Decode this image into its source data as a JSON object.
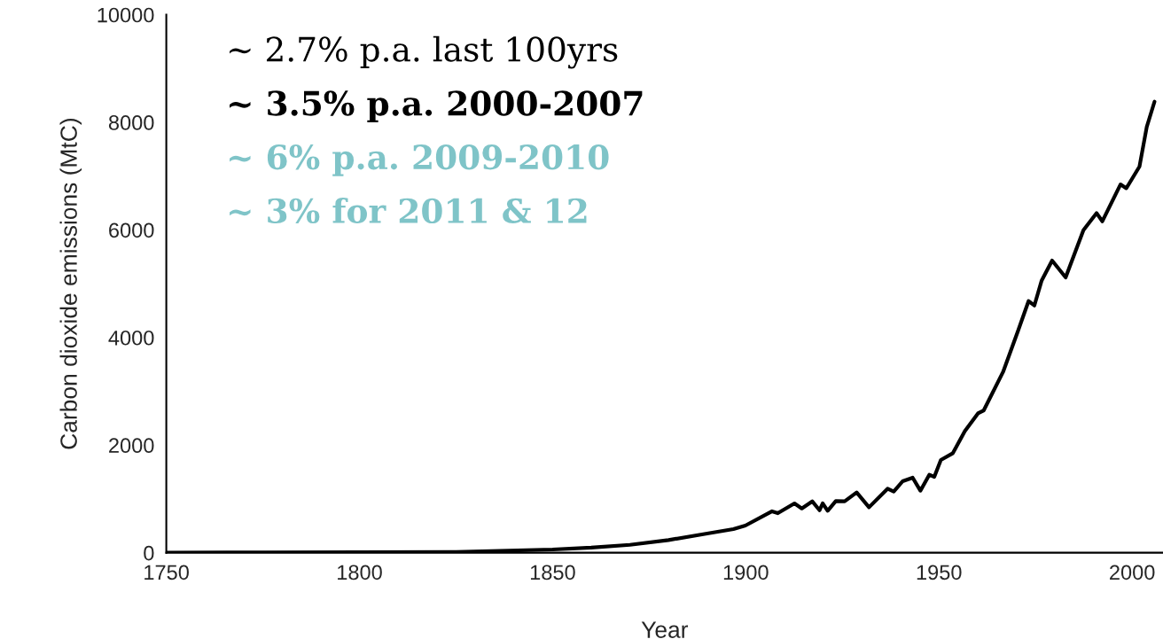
{
  "chart_data": {
    "type": "line",
    "xlabel": "Year",
    "ylabel": "Carbon dioxide emissions (MtC)",
    "x": [
      1750,
      1775,
      1800,
      1825,
      1850,
      1860,
      1870,
      1880,
      1890,
      1896.8,
      1899.9,
      1906.8,
      1908.3,
      1912.6,
      1914.5,
      1917.2,
      1919.1,
      1919.9,
      1921.2,
      1923.3,
      1925.6,
      1928.7,
      1931.9,
      1936.7,
      1938.3,
      1940.6,
      1943.2,
      1945.2,
      1947.5,
      1948.8,
      1950.5,
      1953.6,
      1956.7,
      1960.1,
      1961.6,
      1966.6,
      1970.5,
      1973.2,
      1974.7,
      1976.6,
      1979.3,
      1982.8,
      1987.4,
      1990.8,
      1992.3,
      1997.0,
      1998.5,
      2001.9,
      2003.8,
      2005.8
    ],
    "series": [
      {
        "color": "#000000",
        "values": [
          3,
          5,
          8,
          15,
          60,
          95,
          147,
          236,
          357,
          440,
          505,
          770,
          735,
          917,
          823,
          955,
          790,
          917,
          779,
          960,
          955,
          1120,
          845,
          1190,
          1136,
          1329,
          1395,
          1153,
          1450,
          1411,
          1724,
          1850,
          2261,
          2590,
          2646,
          3360,
          4129,
          4677,
          4595,
          5061,
          5430,
          5117,
          5995,
          6313,
          6160,
          6846,
          6774,
          7176,
          7917,
          8383
        ]
      }
    ],
    "xlim": [
      1750,
      2008
    ],
    "ylim": [
      0,
      10000
    ],
    "xticks": [
      1750,
      1800,
      1850,
      1900,
      1950,
      2000
    ],
    "yticks": [
      0,
      2000,
      4000,
      6000,
      8000,
      10000
    ],
    "marker": "none",
    "line_style": "solid",
    "grid": false,
    "legend": false,
    "annotations": [
      "~ 2.7% p.a. last 100yrs",
      "~ 3.5% p.a. 2000-2007",
      "~ 6% p.a. 2009-2010",
      "~ 3% for 2011 & 12"
    ]
  }
}
